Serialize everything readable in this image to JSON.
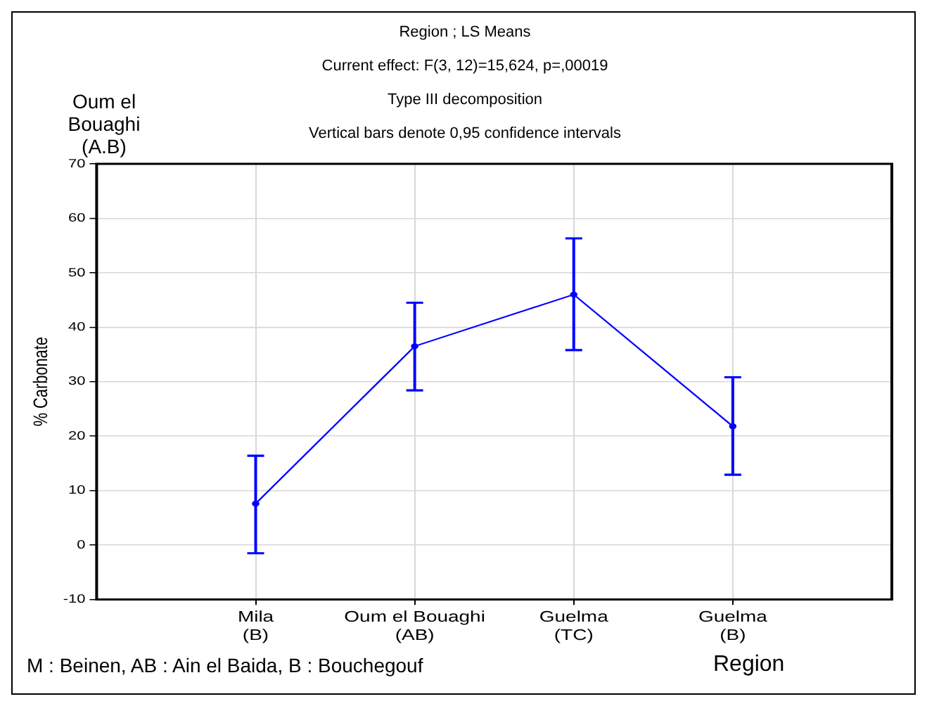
{
  "chart_data": {
    "type": "line",
    "title": "Region ; LS Means",
    "subtitle": "Current effect: F(3, 12)=15,624, p=,00019",
    "annotations": [
      "Type III decomposition",
      "Vertical bars denote 0,95 confidence intervals",
      "Oum el\nBouaghi\n(A.B)",
      "M : Beinen, AB : Ain el Baida, B : Bouchegouf"
    ],
    "xlabel": "Region",
    "ylabel": "% Carbonate",
    "categories": [
      "Mila\n(B)",
      "Oum el Bouaghi\n(AB)",
      "Guelma\n(TC)",
      "Guelma\n(B)"
    ],
    "series": [
      {
        "color": "#0000ff",
        "values": [
          7.6,
          36.5,
          46,
          21.8
        ],
        "errors": [
          [
            -1.5,
            16.4
          ],
          [
            28.4,
            44.5
          ],
          [
            35.8,
            56.3
          ],
          [
            12.9,
            30.8
          ]
        ]
      }
    ],
    "ylim": [
      -10,
      70
    ],
    "yticks": [
      -10,
      0,
      10,
      20,
      30,
      40,
      50,
      60,
      70
    ],
    "grid": true,
    "legend": false,
    "marker": "circle",
    "line_style": "solid"
  }
}
